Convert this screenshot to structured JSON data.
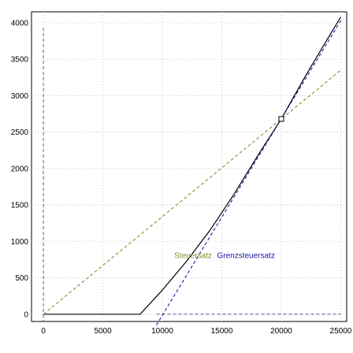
{
  "chart_data": {
    "type": "line",
    "title": "",
    "xlabel": "",
    "ylabel": "",
    "xlim": [
      -1000,
      25500
    ],
    "ylim": [
      -100,
      4150
    ],
    "x_ticks": [
      0,
      5000,
      10000,
      15000,
      20000,
      25000
    ],
    "y_ticks": [
      0,
      500,
      1000,
      1500,
      2000,
      2500,
      3000,
      3500,
      4000
    ],
    "grid": true,
    "series": [
      {
        "role": "tax-curve",
        "color": "#000000",
        "style": "solid",
        "x": [
          0,
          8130,
          10000,
          12000,
          14000,
          16000,
          18000,
          20000,
          22000,
          24000,
          25000
        ],
        "y": [
          0,
          0,
          330,
          720,
          1150,
          1640,
          2170,
          2680,
          3260,
          3810,
          4080
        ]
      },
      {
        "name": "Steuersatz",
        "role": "average-rate-line",
        "color": "#8a8a2e",
        "style": "dashed",
        "x": [
          0,
          25000
        ],
        "y": [
          0,
          3350
        ]
      },
      {
        "name": "Grenzsteuersatz",
        "role": "marginal-rate-tangent",
        "color": "#1a1aa0",
        "style": "dashed",
        "x": [
          9500,
          25000
        ],
        "y": [
          -150,
          4030
        ]
      }
    ],
    "reference_lines": [
      {
        "axis": "x",
        "value": 0,
        "color": "#4a4aa0",
        "style": "dashed"
      },
      {
        "axis": "y",
        "value": 0,
        "color": "#4a4aa0",
        "style": "dashed",
        "from": 9500,
        "to": 25000
      }
    ],
    "marker": {
      "x": 20000,
      "y": 2680,
      "shape": "square"
    },
    "annotations": [
      {
        "text": "Steuersatz",
        "x": 11000,
        "y": 770,
        "color": "#8a8a2e"
      },
      {
        "text": "Grenzsteuersatz",
        "x": 14600,
        "y": 770,
        "color": "#1a1aa0"
      }
    ]
  }
}
